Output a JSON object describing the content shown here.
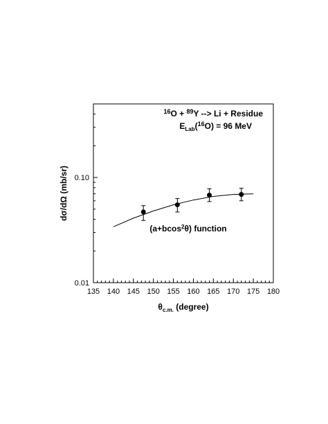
{
  "chart_data": {
    "type": "scatter",
    "title": "",
    "xlabel": {
      "main": "θ",
      "sub": "c.m.",
      "rest": " (degree)"
    },
    "ylabel": "dσ/dΩ (mb/sr)",
    "xlim": [
      135,
      180
    ],
    "ylim": [
      0.01,
      0.5
    ],
    "yscale": "log",
    "x_ticks": [
      "135",
      "140",
      "145",
      "150",
      "155",
      "160",
      "165",
      "170",
      "175",
      "180"
    ],
    "y_ticks": [
      {
        "value": 0.1,
        "label": "0.10"
      },
      {
        "value": 0.01,
        "label": "0.01"
      }
    ],
    "grid": false,
    "series": [
      {
        "points": [
          {
            "x": 147.5,
            "y": 0.047,
            "err_low": 0.039,
            "err_high": 0.054
          },
          {
            "x": 156,
            "y": 0.055,
            "err_low": 0.047,
            "err_high": 0.063
          },
          {
            "x": 164,
            "y": 0.068,
            "err_low": 0.059,
            "err_high": 0.078
          },
          {
            "x": 172,
            "y": 0.069,
            "err_low": 0.06,
            "err_high": 0.079
          }
        ]
      }
    ],
    "fit_curve": {
      "x": [
        140,
        145,
        150,
        155,
        160,
        165,
        170,
        175
      ],
      "y": [
        0.034,
        0.041,
        0.048,
        0.055,
        0.061,
        0.066,
        0.069,
        0.07
      ]
    },
    "annotations": {
      "reaction": {
        "a_mass": "16",
        "a_sym": "O + ",
        "b_mass": "89",
        "b_sym": "Y --> Li + Residue"
      },
      "energy": {
        "E": "E",
        "lab": "Lab",
        "open": "(",
        "mass": "16",
        "close": "O) = 96 MeV"
      },
      "function": {
        "pre": "(a+bcos",
        "sup": "2",
        "post": "θ) function"
      }
    }
  }
}
